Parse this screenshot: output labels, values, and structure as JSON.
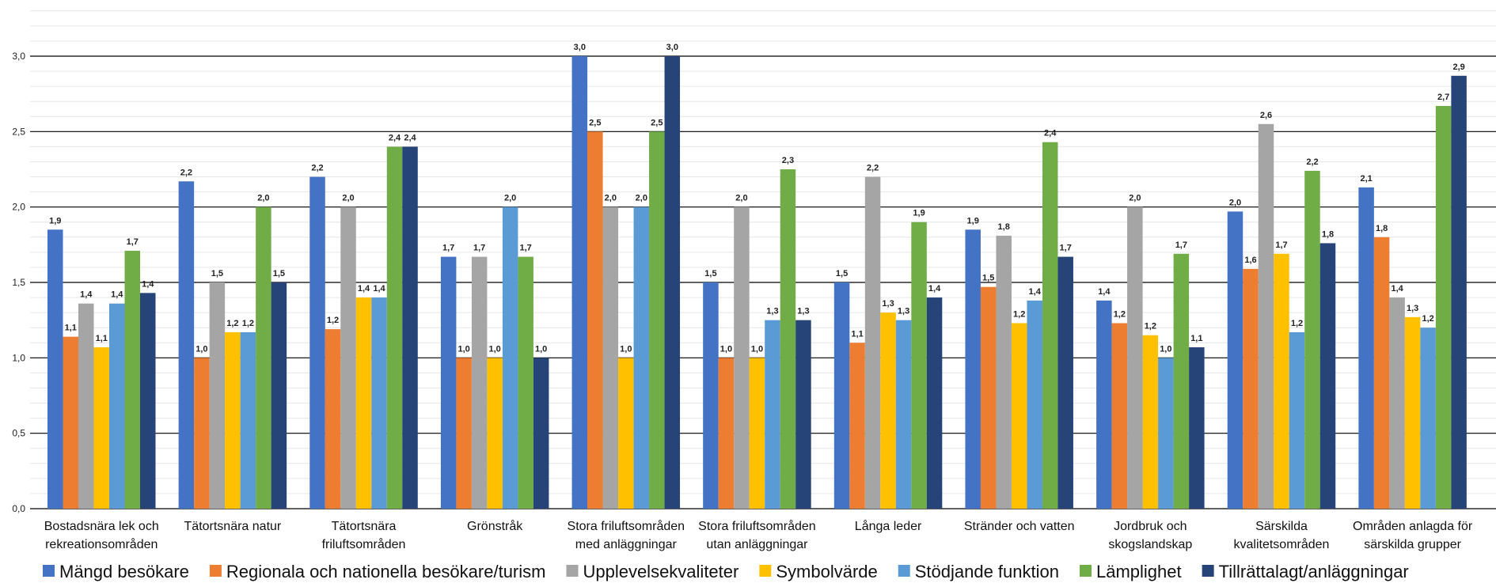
{
  "chart_data": {
    "type": "bar",
    "title": "",
    "xlabel": "",
    "ylabel": "",
    "ylim": [
      0,
      3.0
    ],
    "yticks": [
      "0,0",
      "0,5",
      "1,0",
      "1,5",
      "2,0",
      "2,5",
      "3,0"
    ],
    "ytick_values": [
      0,
      0.5,
      1.0,
      1.5,
      2.0,
      2.5,
      3.0
    ],
    "grid": true,
    "legend_position": "bottom",
    "categories": [
      [
        "Bostadsnära lek och",
        "rekreationsområden"
      ],
      [
        "Tätortsnära natur"
      ],
      [
        "Tätortsnära",
        "friluftsområden"
      ],
      [
        "Grönstråk"
      ],
      [
        "Stora friluftsområden",
        "med anläggningar"
      ],
      [
        "Stora friluftsområden",
        "utan anläggningar"
      ],
      [
        "Långa leder"
      ],
      [
        "Stränder och vatten"
      ],
      [
        "Jordbruk och",
        "skogslandskap"
      ],
      [
        "Särskilda",
        "kvalitetsområden"
      ],
      [
        "Områden anlagda för",
        "särskilda grupper"
      ]
    ],
    "series": [
      {
        "name": "Mängd besökare",
        "color": "#4472C4",
        "values": [
          1.85,
          2.17,
          2.2,
          1.67,
          3.0,
          1.5,
          1.5,
          1.85,
          1.38,
          1.97,
          2.13
        ],
        "labels": [
          "1,9",
          "2,2",
          "2,2",
          "1,7",
          "3,0",
          "1,5",
          "1,5",
          "1,9",
          "1,4",
          "2,0",
          "2,1"
        ]
      },
      {
        "name": "Regionala och nationella besökare/turism",
        "color": "#ED7D31",
        "values": [
          1.14,
          1.0,
          1.19,
          1.0,
          2.5,
          1.0,
          1.1,
          1.47,
          1.23,
          1.59,
          1.8
        ],
        "labels": [
          "1,1",
          "1,0",
          "1,2",
          "1,0",
          "2,5",
          "1,0",
          "1,1",
          "1,5",
          "1,2",
          "1,6",
          "1,8"
        ]
      },
      {
        "name": "Upplevelsekvaliteter",
        "color": "#A5A5A5",
        "values": [
          1.36,
          1.5,
          2.0,
          1.67,
          2.0,
          2.0,
          2.2,
          1.81,
          2.0,
          2.55,
          1.4
        ],
        "labels": [
          "1,4",
          "1,5",
          "2,0",
          "1,7",
          "2,0",
          "2,0",
          "2,2",
          "1,8",
          "2,0",
          "2,6",
          "1,4"
        ]
      },
      {
        "name": "Symbolvärde",
        "color": "#FFC000",
        "values": [
          1.07,
          1.17,
          1.4,
          1.0,
          1.0,
          1.0,
          1.3,
          1.23,
          1.15,
          1.69,
          1.27
        ],
        "labels": [
          "1,1",
          "1,2",
          "1,4",
          "1,0",
          "1,0",
          "1,0",
          "1,3",
          "1,2",
          "1,2",
          "1,7",
          "1,3"
        ]
      },
      {
        "name": "Stödjande funktion",
        "color": "#5B9BD5",
        "values": [
          1.36,
          1.17,
          1.4,
          2.0,
          2.0,
          1.25,
          1.25,
          1.38,
          1.0,
          1.17,
          1.2
        ],
        "labels": [
          "1,4",
          "1,2",
          "1,4",
          "2,0",
          "2,0",
          "1,3",
          "1,3",
          "1,4",
          "1,0",
          "1,2",
          "1,2"
        ]
      },
      {
        "name": "Lämplighet",
        "color": "#70AD47",
        "values": [
          1.71,
          2.0,
          2.4,
          1.67,
          2.5,
          2.25,
          1.9,
          2.43,
          1.69,
          2.24,
          2.67
        ],
        "labels": [
          "1,7",
          "2,0",
          "2,4",
          "1,7",
          "2,5",
          "2,3",
          "1,9",
          "2,4",
          "1,7",
          "2,2",
          "2,7"
        ]
      },
      {
        "name": "Tillrättalagt/anläggningar",
        "color": "#264478",
        "values": [
          1.43,
          1.5,
          2.4,
          1.0,
          3.0,
          1.25,
          1.4,
          1.67,
          1.07,
          1.76,
          2.87
        ],
        "labels": [
          "1,4",
          "1,5",
          "2,4",
          "1,0",
          "3,0",
          "1,3",
          "1,4",
          "1,7",
          "1,1",
          "1,8",
          "2,9"
        ]
      }
    ]
  }
}
